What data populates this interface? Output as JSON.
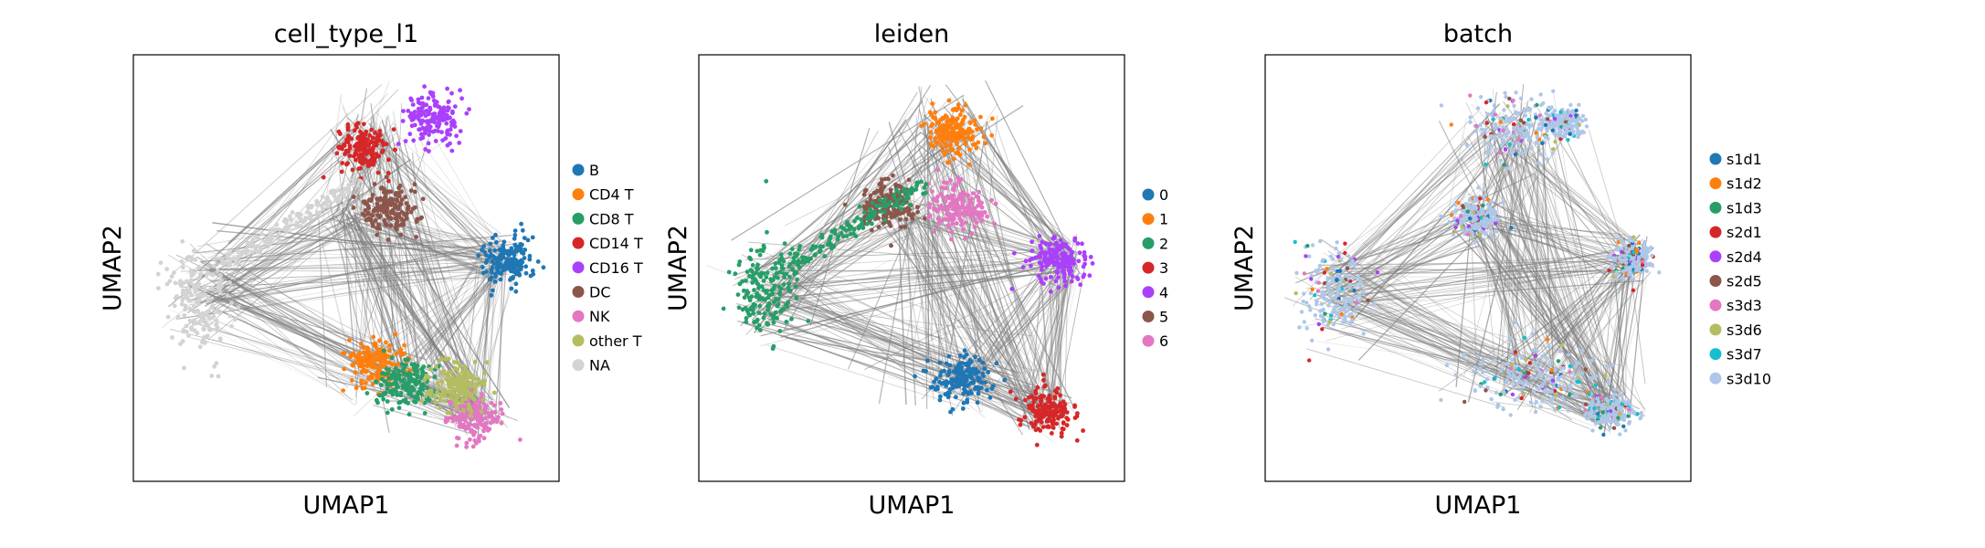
{
  "chart_data": [
    {
      "type": "scatter",
      "title": "cell_type_l1",
      "xlabel": "UMAP1",
      "ylabel": "UMAP2",
      "grid": false,
      "legend": "right",
      "legend_entries": [
        {
          "label": "B",
          "color": "#1f77b4"
        },
        {
          "label": "CD4 T",
          "color": "#ff7f0e"
        },
        {
          "label": "CD8 T",
          "color": "#279e68"
        },
        {
          "label": "CD14 T",
          "color": "#d62728"
        },
        {
          "label": "CD16 T",
          "color": "#aa40fc"
        },
        {
          "label": "DC",
          "color": "#8c564b"
        },
        {
          "label": "NK",
          "color": "#e377c2"
        },
        {
          "label": "other T",
          "color": "#b5bd61"
        },
        {
          "label": "NA",
          "color": "#d3d3d3"
        }
      ],
      "clusters": [
        {
          "label": "CD14 T",
          "x": 0.54,
          "y": 0.78
        },
        {
          "label": "CD16 T",
          "x": 0.7,
          "y": 0.85
        },
        {
          "label": "NA",
          "x": 0.15,
          "y": 0.42
        },
        {
          "label": "B",
          "x": 0.88,
          "y": 0.52
        },
        {
          "label": "CD4 T",
          "x": 0.57,
          "y": 0.28
        },
        {
          "label": "CD8 T",
          "x": 0.64,
          "y": 0.23
        },
        {
          "label": "NK",
          "x": 0.8,
          "y": 0.15
        },
        {
          "label": "DC",
          "x": 0.6,
          "y": 0.64
        },
        {
          "label": "other T",
          "x": 0.76,
          "y": 0.22
        }
      ]
    },
    {
      "type": "scatter",
      "title": "leiden",
      "xlabel": "UMAP1",
      "ylabel": "UMAP2",
      "grid": false,
      "legend": "right",
      "legend_entries": [
        {
          "label": "0",
          "color": "#1f77b4"
        },
        {
          "label": "1",
          "color": "#ff7f0e"
        },
        {
          "label": "2",
          "color": "#279e68"
        },
        {
          "label": "3",
          "color": "#d62728"
        },
        {
          "label": "4",
          "color": "#aa40fc"
        },
        {
          "label": "5",
          "color": "#8c564b"
        },
        {
          "label": "6",
          "color": "#e377c2"
        }
      ],
      "clusters": [
        {
          "label": "1",
          "x": 0.6,
          "y": 0.82
        },
        {
          "label": "2",
          "x": 0.15,
          "y": 0.45
        },
        {
          "label": "4",
          "x": 0.85,
          "y": 0.52
        },
        {
          "label": "0",
          "x": 0.62,
          "y": 0.24
        },
        {
          "label": "3",
          "x": 0.82,
          "y": 0.17
        },
        {
          "label": "5",
          "x": 0.45,
          "y": 0.65
        },
        {
          "label": "6",
          "x": 0.61,
          "y": 0.64
        }
      ]
    },
    {
      "type": "scatter",
      "title": "batch",
      "xlabel": "UMAP1",
      "ylabel": "UMAP2",
      "grid": false,
      "legend": "right",
      "legend_entries": [
        {
          "label": "s1d1",
          "color": "#1f77b4"
        },
        {
          "label": "s1d2",
          "color": "#ff7f0e"
        },
        {
          "label": "s1d3",
          "color": "#279e68"
        },
        {
          "label": "s2d1",
          "color": "#d62728"
        },
        {
          "label": "s2d4",
          "color": "#aa40fc"
        },
        {
          "label": "s2d5",
          "color": "#8c564b"
        },
        {
          "label": "s3d3",
          "color": "#e377c2"
        },
        {
          "label": "s3d6",
          "color": "#b5bd61"
        },
        {
          "label": "s3d7",
          "color": "#17becf"
        },
        {
          "label": "s3d10",
          "color": "#aec7e8"
        }
      ]
    }
  ],
  "colors": {
    "edges": "#808080",
    "frame": "#000000"
  }
}
